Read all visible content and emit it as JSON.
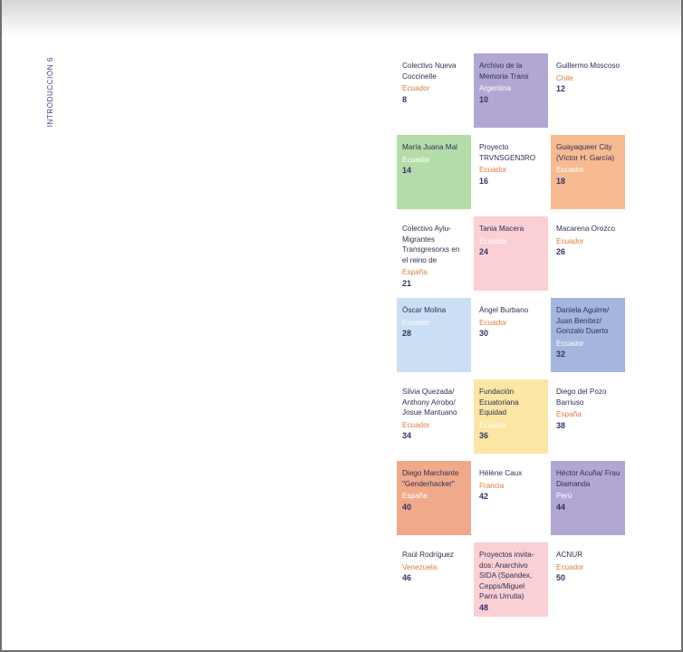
{
  "section_label": "INTRODUCCIÓN 6",
  "colors": {
    "purple": "#b2a7d4",
    "green": "#b4dca8",
    "orange": "#f6bb91",
    "pink": "#fbd0d4",
    "light_blue": "#cadff4",
    "blue": "#a4b6de",
    "yellow": "#fbe6a4",
    "salmon": "#f0a98a",
    "white": "#ffffff"
  },
  "entries": [
    {
      "name": "Colectivo Nueva Coccinelle",
      "country": "Ecuador",
      "page": "8",
      "color": "#ffffff"
    },
    {
      "name": "Archivo de la Memoria Trans",
      "country": "Argentina",
      "page": "10",
      "color": "#b2a7d4"
    },
    {
      "name": "Guillermo Moscoso",
      "country": "Chile",
      "page": "12",
      "color": "#ffffff"
    },
    {
      "name": "María Juana Mal",
      "country": "Ecuador",
      "page": "14",
      "color": "#b4dca8"
    },
    {
      "name": "Proyecto TRVNSGEN3RO",
      "country": "Ecuador",
      "page": "16",
      "color": "#ffffff"
    },
    {
      "name": "Guayaqueer City (Víctor H. García)",
      "country": "Ecuador",
      "page": "18",
      "color": "#f6bb91"
    },
    {
      "name": "Colectivo Aylu-Migrantes Transgresorxs en el reino de",
      "country": "España",
      "page": "21",
      "color": "#ffffff"
    },
    {
      "name": "Tania Macera",
      "country": "Ecuador",
      "page": "24",
      "color": "#fbd0d4"
    },
    {
      "name": "Macarena Orozco",
      "country": "Ecuador",
      "page": "26",
      "color": "#ffffff"
    },
    {
      "name": "Óscar Molina",
      "country": "Ecuador",
      "page": "28",
      "color": "#cadff4"
    },
    {
      "name": "Ángel Burbano",
      "country": "Ecuador",
      "page": "30",
      "color": "#ffffff"
    },
    {
      "name": "Daniela Aguirre/ Juan Benítez/ Gonzalo Duerto",
      "country": "Ecuador",
      "page": "32",
      "color": "#a4b6de"
    },
    {
      "name": "Silvia Quezada/ Anthony Arrobo/ Josue Mantuano",
      "country": "Ecuador",
      "page": "34",
      "color": "#ffffff"
    },
    {
      "name": "Fundación Ecuatoriana Equidad",
      "country": "Ecuador",
      "page": "36",
      "color": "#fbe6a4"
    },
    {
      "name": "Diego del Pozo Barriuso",
      "country": "España",
      "page": "38",
      "color": "#ffffff"
    },
    {
      "name": "Diego Marchante \"Genderhacker\"",
      "country": "España",
      "page": "40",
      "color": "#f0a98a"
    },
    {
      "name": "Hélène Caux",
      "country": "Francia",
      "page": "42",
      "color": "#ffffff"
    },
    {
      "name": "Héctor Acuña/ Frau Diamanda",
      "country": "Perú",
      "page": "44",
      "color": "#b2a7d4"
    },
    {
      "name": "Raúl Rodríguez",
      "country": "Venezuela",
      "page": "46",
      "color": "#ffffff"
    },
    {
      "name": "Proyectos invita-dos: Anarchivo SIDA (Spandex, Cepps/Miguel Parra Urrutia)",
      "country": "",
      "page": "48",
      "color": "#fbd0d4"
    },
    {
      "name": "ACNUR",
      "country": "Ecuador",
      "page": "50",
      "color": "#ffffff"
    }
  ]
}
